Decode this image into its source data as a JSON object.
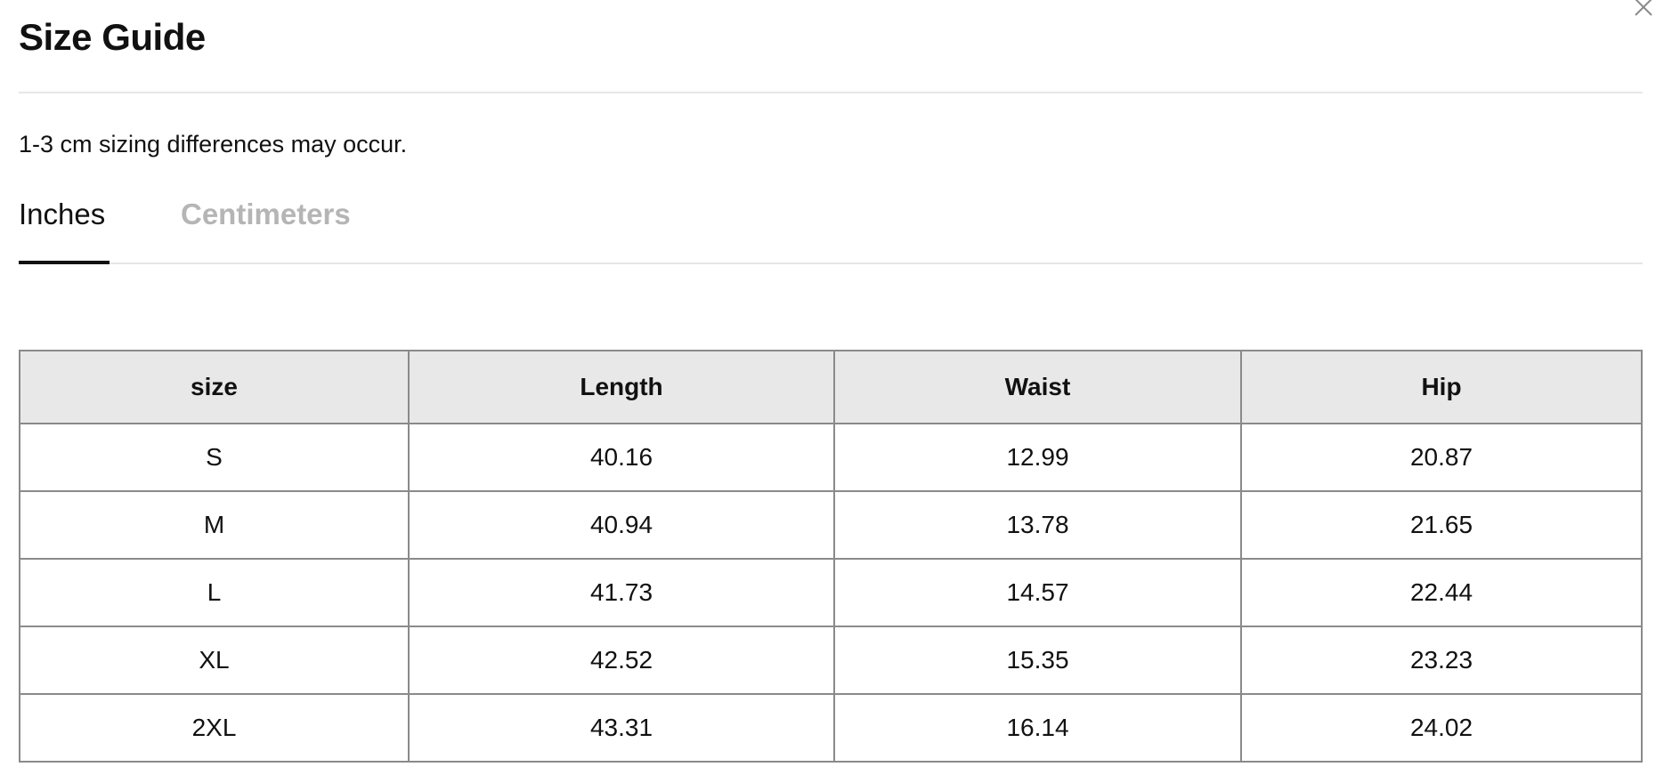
{
  "dialog": {
    "title": "Size Guide",
    "close_icon": "close-icon",
    "note": "1-3 cm sizing differences may occur.",
    "tabs": [
      {
        "label": "Inches",
        "active": true
      },
      {
        "label": "Centimeters",
        "active": false
      }
    ]
  },
  "table": {
    "headers": [
      "size",
      "Length",
      "Waist",
      "Hip"
    ],
    "rows": [
      [
        "S",
        "40.16",
        "12.99",
        "20.87"
      ],
      [
        "M",
        "40.94",
        "13.78",
        "21.65"
      ],
      [
        "L",
        "41.73",
        "14.57",
        "22.44"
      ],
      [
        "XL",
        "42.52",
        "15.35",
        "23.23"
      ],
      [
        "2XL",
        "43.31",
        "16.14",
        "24.02"
      ]
    ]
  }
}
